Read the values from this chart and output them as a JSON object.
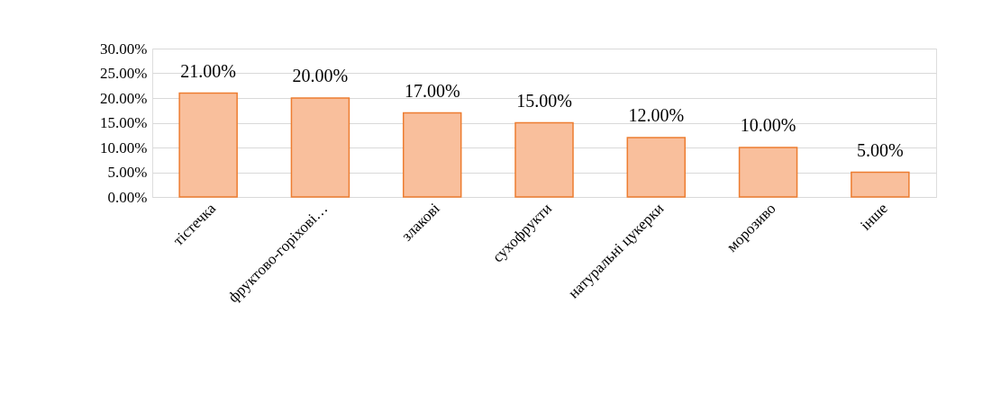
{
  "chart_data": {
    "type": "bar",
    "categories": [
      "тістечка",
      "фруктово-горіхові…",
      "злакові",
      "сухофрукти",
      "натуральні цукерки",
      "морозиво",
      "інше"
    ],
    "values": [
      21,
      20,
      17,
      15,
      12,
      10,
      5
    ],
    "value_labels": [
      "21.00%",
      "20.00%",
      "17.00%",
      "15.00%",
      "12.00%",
      "10.00%",
      "5.00%"
    ],
    "color": "#f9bf9c",
    "ylim": [
      0,
      30
    ],
    "yticks": [
      {
        "value": 0,
        "label": "0.00%"
      },
      {
        "value": 5,
        "label": "5.00%"
      },
      {
        "value": 10,
        "label": "10.00%"
      },
      {
        "value": 15,
        "label": "15.00%"
      },
      {
        "value": 20,
        "label": "20.00%"
      },
      {
        "value": 25,
        "label": "25.00%"
      },
      {
        "value": 30,
        "label": "30.00%"
      }
    ],
    "grid": "y"
  }
}
